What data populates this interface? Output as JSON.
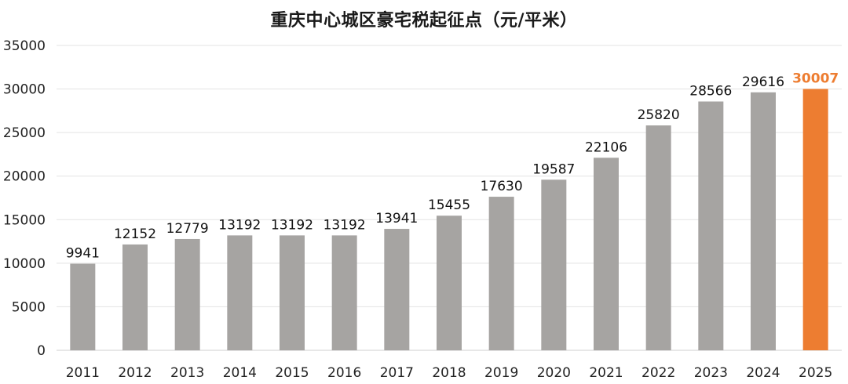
{
  "chart_data": {
    "type": "bar",
    "title": "重庆中心城区豪宅税起征点（元/平米）",
    "xlabel": "",
    "ylabel": "",
    "categories": [
      "2011",
      "2012",
      "2013",
      "2014",
      "2015",
      "2016",
      "2017",
      "2018",
      "2019",
      "2020",
      "2021",
      "2022",
      "2023",
      "2024",
      "2025"
    ],
    "values": [
      9941,
      12152,
      12779,
      13192,
      13192,
      13192,
      13941,
      15455,
      17630,
      19587,
      22106,
      25820,
      28566,
      29616,
      30007
    ],
    "ylim": [
      0,
      35000
    ],
    "yticks": [
      "0",
      "5000",
      "10000",
      "15000",
      "20000",
      "25000",
      "30000",
      "35000"
    ],
    "grid": true,
    "legend": "none",
    "colors": {
      "bar": "#A6A4A2",
      "highlight": "#ED7D31"
    },
    "highlight_category": "2025"
  }
}
